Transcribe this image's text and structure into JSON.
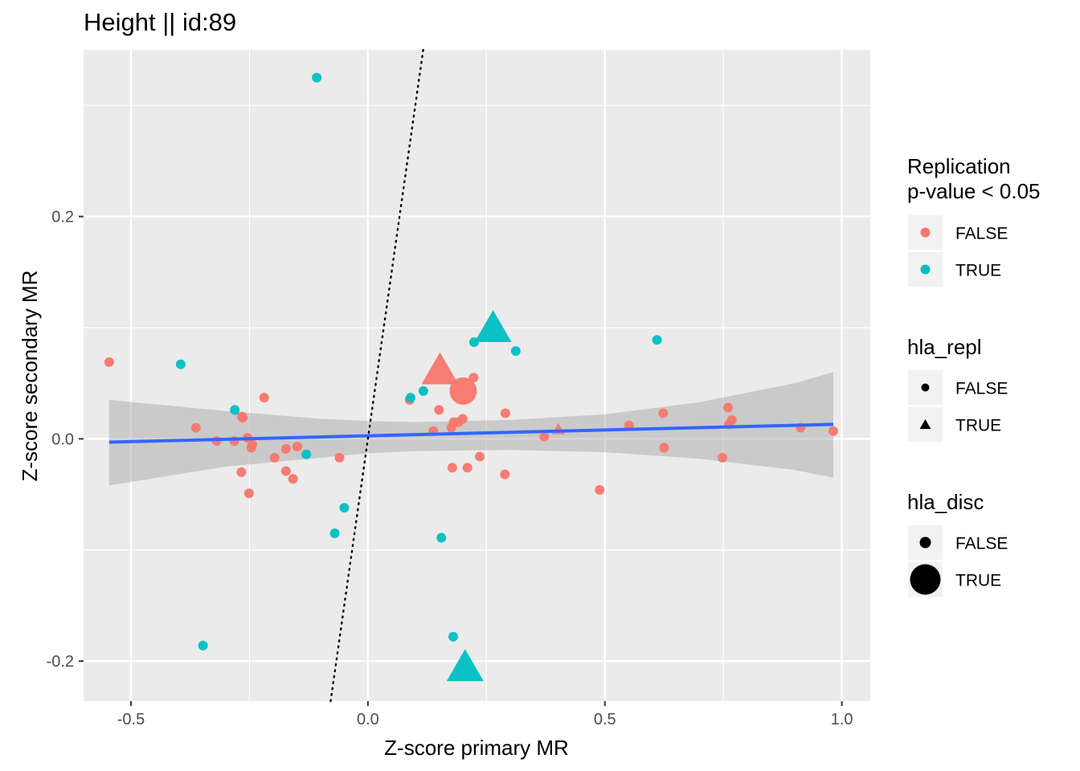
{
  "chart_data": {
    "type": "scatter",
    "title": "Height || id:89",
    "xlabel": "Z-score primary MR",
    "ylabel": "Z-score secondary MR",
    "xlim": [
      -0.6,
      1.06
    ],
    "ylim": [
      -0.236,
      0.35
    ],
    "x_ticks": [
      -0.5,
      0.0,
      0.5,
      1.0
    ],
    "x_tick_labels": [
      "-0.5",
      "0.0",
      "0.5",
      "1.0"
    ],
    "y_ticks": [
      -0.2,
      0.0,
      0.2
    ],
    "y_tick_labels": [
      "-0.2",
      "0.0",
      "0.2"
    ],
    "grid": true,
    "colors": {
      "FALSE": "#F8766D",
      "TRUE": "#00BFC4",
      "fit_line": "#3366FF",
      "ribbon": "#999999",
      "panel": "#EBEBEB"
    },
    "reference_line": {
      "style": "dotted",
      "slope": 3.0,
      "intercept": 0.0
    },
    "fit_line": {
      "x": [
        -0.546,
        0.982
      ],
      "y": [
        -0.003,
        0.013
      ]
    },
    "confidence_band": {
      "x": [
        -0.546,
        -0.3,
        -0.1,
        0.0,
        0.1,
        0.3,
        0.5,
        0.7,
        0.9,
        0.982
      ],
      "upper": [
        0.035,
        0.025,
        0.018,
        0.016,
        0.015,
        0.017,
        0.022,
        0.033,
        0.05,
        0.06
      ],
      "lower": [
        -0.042,
        -0.025,
        -0.017,
        -0.013,
        -0.011,
        -0.01,
        -0.012,
        -0.018,
        -0.028,
        -0.035
      ]
    },
    "legends": [
      {
        "title": [
          "Replication",
          "p-value < 0.05"
        ],
        "kind": "color",
        "entries": [
          {
            "label": "FALSE",
            "color": "#F8766D"
          },
          {
            "label": "TRUE",
            "color": "#00BFC4"
          }
        ]
      },
      {
        "title": [
          "hla_repl"
        ],
        "kind": "shape",
        "entries": [
          {
            "label": "FALSE",
            "shape": "circle"
          },
          {
            "label": "TRUE",
            "shape": "triangle"
          }
        ]
      },
      {
        "title": [
          "hla_disc"
        ],
        "kind": "size",
        "entries": [
          {
            "label": "FALSE",
            "size": "small"
          },
          {
            "label": "TRUE",
            "size": "large"
          }
        ]
      }
    ],
    "points": [
      {
        "x": -0.546,
        "y": 0.069,
        "repl": false,
        "hla_repl": false,
        "hla_disc": false
      },
      {
        "x": -0.395,
        "y": 0.067,
        "repl": true,
        "hla_repl": false,
        "hla_disc": false
      },
      {
        "x": -0.108,
        "y": 0.325,
        "repl": true,
        "hla_repl": false,
        "hla_disc": false
      },
      {
        "x": -0.363,
        "y": 0.01,
        "repl": false,
        "hla_repl": false,
        "hla_disc": false
      },
      {
        "x": -0.319,
        "y": -0.002,
        "repl": false,
        "hla_repl": false,
        "hla_disc": false
      },
      {
        "x": -0.281,
        "y": 0.026,
        "repl": true,
        "hla_repl": false,
        "hla_disc": false
      },
      {
        "x": -0.282,
        "y": -0.002,
        "repl": false,
        "hla_repl": false,
        "hla_disc": false
      },
      {
        "x": -0.266,
        "y": 0.02,
        "repl": false,
        "hla_repl": false,
        "hla_disc": false
      },
      {
        "x": -0.264,
        "y": 0.019,
        "repl": false,
        "hla_repl": false,
        "hla_disc": false
      },
      {
        "x": -0.254,
        "y": 0.001,
        "repl": false,
        "hla_repl": false,
        "hla_disc": false
      },
      {
        "x": -0.244,
        "y": -0.005,
        "repl": false,
        "hla_repl": false,
        "hla_disc": false
      },
      {
        "x": -0.246,
        "y": -0.008,
        "repl": false,
        "hla_repl": false,
        "hla_disc": false
      },
      {
        "x": -0.267,
        "y": -0.03,
        "repl": false,
        "hla_repl": false,
        "hla_disc": false
      },
      {
        "x": -0.251,
        "y": -0.049,
        "repl": false,
        "hla_repl": false,
        "hla_disc": false
      },
      {
        "x": -0.219,
        "y": 0.037,
        "repl": false,
        "hla_repl": false,
        "hla_disc": false
      },
      {
        "x": -0.197,
        "y": -0.017,
        "repl": false,
        "hla_repl": false,
        "hla_disc": false
      },
      {
        "x": -0.173,
        "y": -0.009,
        "repl": false,
        "hla_repl": false,
        "hla_disc": false
      },
      {
        "x": -0.173,
        "y": -0.029,
        "repl": false,
        "hla_repl": false,
        "hla_disc": false
      },
      {
        "x": -0.158,
        "y": -0.036,
        "repl": false,
        "hla_repl": false,
        "hla_disc": false
      },
      {
        "x": -0.149,
        "y": -0.007,
        "repl": false,
        "hla_repl": false,
        "hla_disc": false
      },
      {
        "x": -0.13,
        "y": -0.014,
        "repl": true,
        "hla_repl": false,
        "hla_disc": false
      },
      {
        "x": -0.06,
        "y": -0.017,
        "repl": false,
        "hla_repl": false,
        "hla_disc": false
      },
      {
        "x": -0.05,
        "y": -0.062,
        "repl": true,
        "hla_repl": false,
        "hla_disc": false
      },
      {
        "x": -0.07,
        "y": -0.085,
        "repl": true,
        "hla_repl": false,
        "hla_disc": false
      },
      {
        "x": -0.348,
        "y": -0.186,
        "repl": true,
        "hla_repl": false,
        "hla_disc": false
      },
      {
        "x": 0.088,
        "y": 0.035,
        "repl": false,
        "hla_repl": false,
        "hla_disc": false
      },
      {
        "x": 0.09,
        "y": 0.037,
        "repl": true,
        "hla_repl": false,
        "hla_disc": false
      },
      {
        "x": 0.117,
        "y": 0.043,
        "repl": true,
        "hla_repl": false,
        "hla_disc": false
      },
      {
        "x": 0.15,
        "y": 0.026,
        "repl": false,
        "hla_repl": false,
        "hla_disc": false
      },
      {
        "x": 0.138,
        "y": 0.007,
        "repl": false,
        "hla_repl": false,
        "hla_disc": false
      },
      {
        "x": 0.176,
        "y": 0.01,
        "repl": false,
        "hla_repl": false,
        "hla_disc": false
      },
      {
        "x": 0.181,
        "y": 0.015,
        "repl": false,
        "hla_repl": false,
        "hla_disc": false
      },
      {
        "x": 0.191,
        "y": 0.015,
        "repl": false,
        "hla_repl": false,
        "hla_disc": false
      },
      {
        "x": 0.2,
        "y": 0.018,
        "repl": false,
        "hla_repl": false,
        "hla_disc": false
      },
      {
        "x": 0.223,
        "y": 0.055,
        "repl": false,
        "hla_repl": false,
        "hla_disc": false
      },
      {
        "x": 0.224,
        "y": 0.087,
        "repl": true,
        "hla_repl": false,
        "hla_disc": false
      },
      {
        "x": 0.178,
        "y": -0.026,
        "repl": false,
        "hla_repl": false,
        "hla_disc": false
      },
      {
        "x": 0.21,
        "y": -0.026,
        "repl": false,
        "hla_repl": false,
        "hla_disc": false
      },
      {
        "x": 0.236,
        "y": -0.016,
        "repl": false,
        "hla_repl": false,
        "hla_disc": false
      },
      {
        "x": 0.155,
        "y": -0.089,
        "repl": true,
        "hla_repl": false,
        "hla_disc": false
      },
      {
        "x": 0.18,
        "y": -0.178,
        "repl": true,
        "hla_repl": false,
        "hla_disc": false
      },
      {
        "x": 0.29,
        "y": 0.023,
        "repl": false,
        "hla_repl": false,
        "hla_disc": false
      },
      {
        "x": 0.289,
        "y": -0.032,
        "repl": false,
        "hla_repl": false,
        "hla_disc": false
      },
      {
        "x": 0.312,
        "y": 0.079,
        "repl": true,
        "hla_repl": false,
        "hla_disc": false
      },
      {
        "x": 0.372,
        "y": 0.002,
        "repl": false,
        "hla_repl": false,
        "hla_disc": false
      },
      {
        "x": 0.489,
        "y": -0.046,
        "repl": false,
        "hla_repl": false,
        "hla_disc": false
      },
      {
        "x": 0.551,
        "y": 0.012,
        "repl": false,
        "hla_repl": false,
        "hla_disc": false
      },
      {
        "x": 0.61,
        "y": 0.089,
        "repl": true,
        "hla_repl": false,
        "hla_disc": false
      },
      {
        "x": 0.623,
        "y": 0.023,
        "repl": false,
        "hla_repl": false,
        "hla_disc": false
      },
      {
        "x": 0.625,
        "y": -0.008,
        "repl": false,
        "hla_repl": false,
        "hla_disc": false
      },
      {
        "x": 0.748,
        "y": -0.017,
        "repl": false,
        "hla_repl": false,
        "hla_disc": false
      },
      {
        "x": 0.76,
        "y": 0.028,
        "repl": false,
        "hla_repl": false,
        "hla_disc": false
      },
      {
        "x": 0.762,
        "y": 0.013,
        "repl": false,
        "hla_repl": false,
        "hla_disc": false
      },
      {
        "x": 0.768,
        "y": 0.017,
        "repl": false,
        "hla_repl": false,
        "hla_disc": false
      },
      {
        "x": 0.913,
        "y": 0.01,
        "repl": false,
        "hla_repl": false,
        "hla_disc": false
      },
      {
        "x": 0.982,
        "y": 0.007,
        "repl": false,
        "hla_repl": false,
        "hla_disc": false
      },
      {
        "x": 0.402,
        "y": 0.008,
        "repl": false,
        "hla_repl": true,
        "hla_disc": false
      },
      {
        "x": 0.152,
        "y": 0.06,
        "repl": false,
        "hla_repl": true,
        "hla_disc": true
      },
      {
        "x": 0.201,
        "y": 0.043,
        "repl": false,
        "hla_repl": false,
        "hla_disc": true
      },
      {
        "x": 0.264,
        "y": 0.098,
        "repl": true,
        "hla_repl": true,
        "hla_disc": true
      },
      {
        "x": 0.205,
        "y": -0.207,
        "repl": true,
        "hla_repl": true,
        "hla_disc": true
      }
    ]
  }
}
